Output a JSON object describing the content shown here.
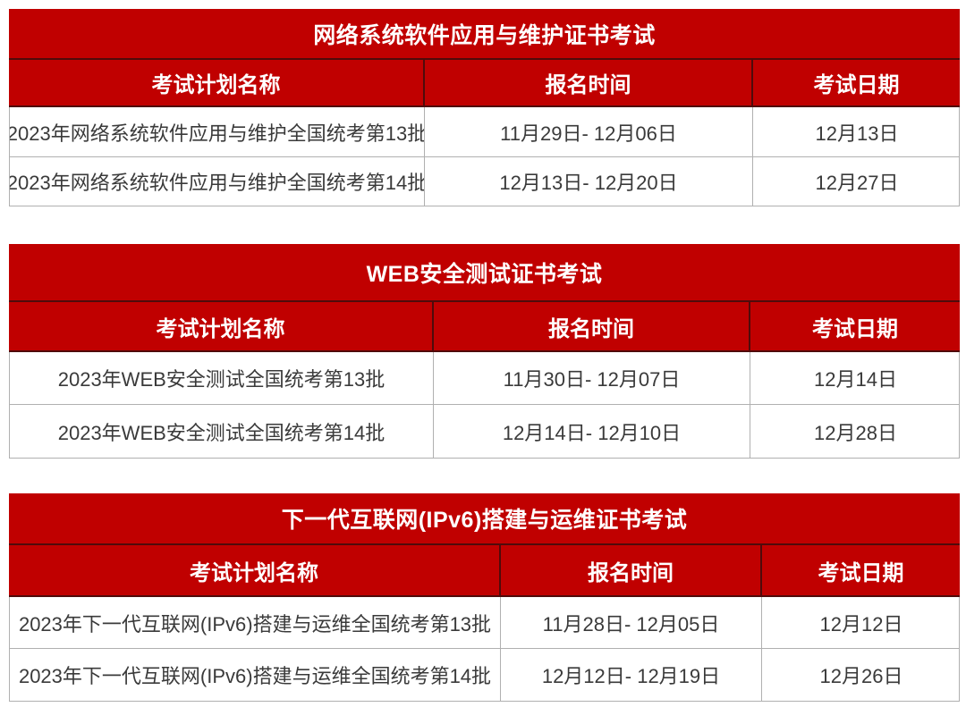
{
  "colors": {
    "accent_red": "#c00000",
    "dark_border": "#4f0b0b",
    "light_border": "#b0b0b0",
    "header_text": "#ffffff",
    "body_text": "#3a3a3a"
  },
  "tables": [
    {
      "title": "网络系统软件应用与维护证书考试",
      "columns": [
        "考试计划名称",
        "报名时间",
        "考试日期"
      ],
      "rows": [
        [
          "2023年网络系统软件应用与维护全国统考第13批",
          "11月29日- 12月06日",
          "12月13日"
        ],
        [
          "2023年网络系统软件应用与维护全国统考第14批",
          "12月13日- 12月20日",
          "12月27日"
        ]
      ]
    },
    {
      "title": "WEB安全测试证书考试",
      "columns": [
        "考试计划名称",
        "报名时间",
        "考试日期"
      ],
      "rows": [
        [
          "2023年WEB安全测试全国统考第13批",
          "11月30日- 12月07日",
          "12月14日"
        ],
        [
          "2023年WEB安全测试全国统考第14批",
          "12月14日- 12月10日",
          "12月28日"
        ]
      ]
    },
    {
      "title": "下一代互联网(IPv6)搭建与运维证书考试",
      "columns": [
        "考试计划名称",
        "报名时间",
        "考试日期"
      ],
      "rows": [
        [
          "2023年下一代互联网(IPv6)搭建与运维全国统考第13批",
          "11月28日- 12月05日",
          "12月12日"
        ],
        [
          "2023年下一代互联网(IPv6)搭建与运维全国统考第14批",
          "12月12日- 12月19日",
          "12月26日"
        ]
      ]
    }
  ]
}
